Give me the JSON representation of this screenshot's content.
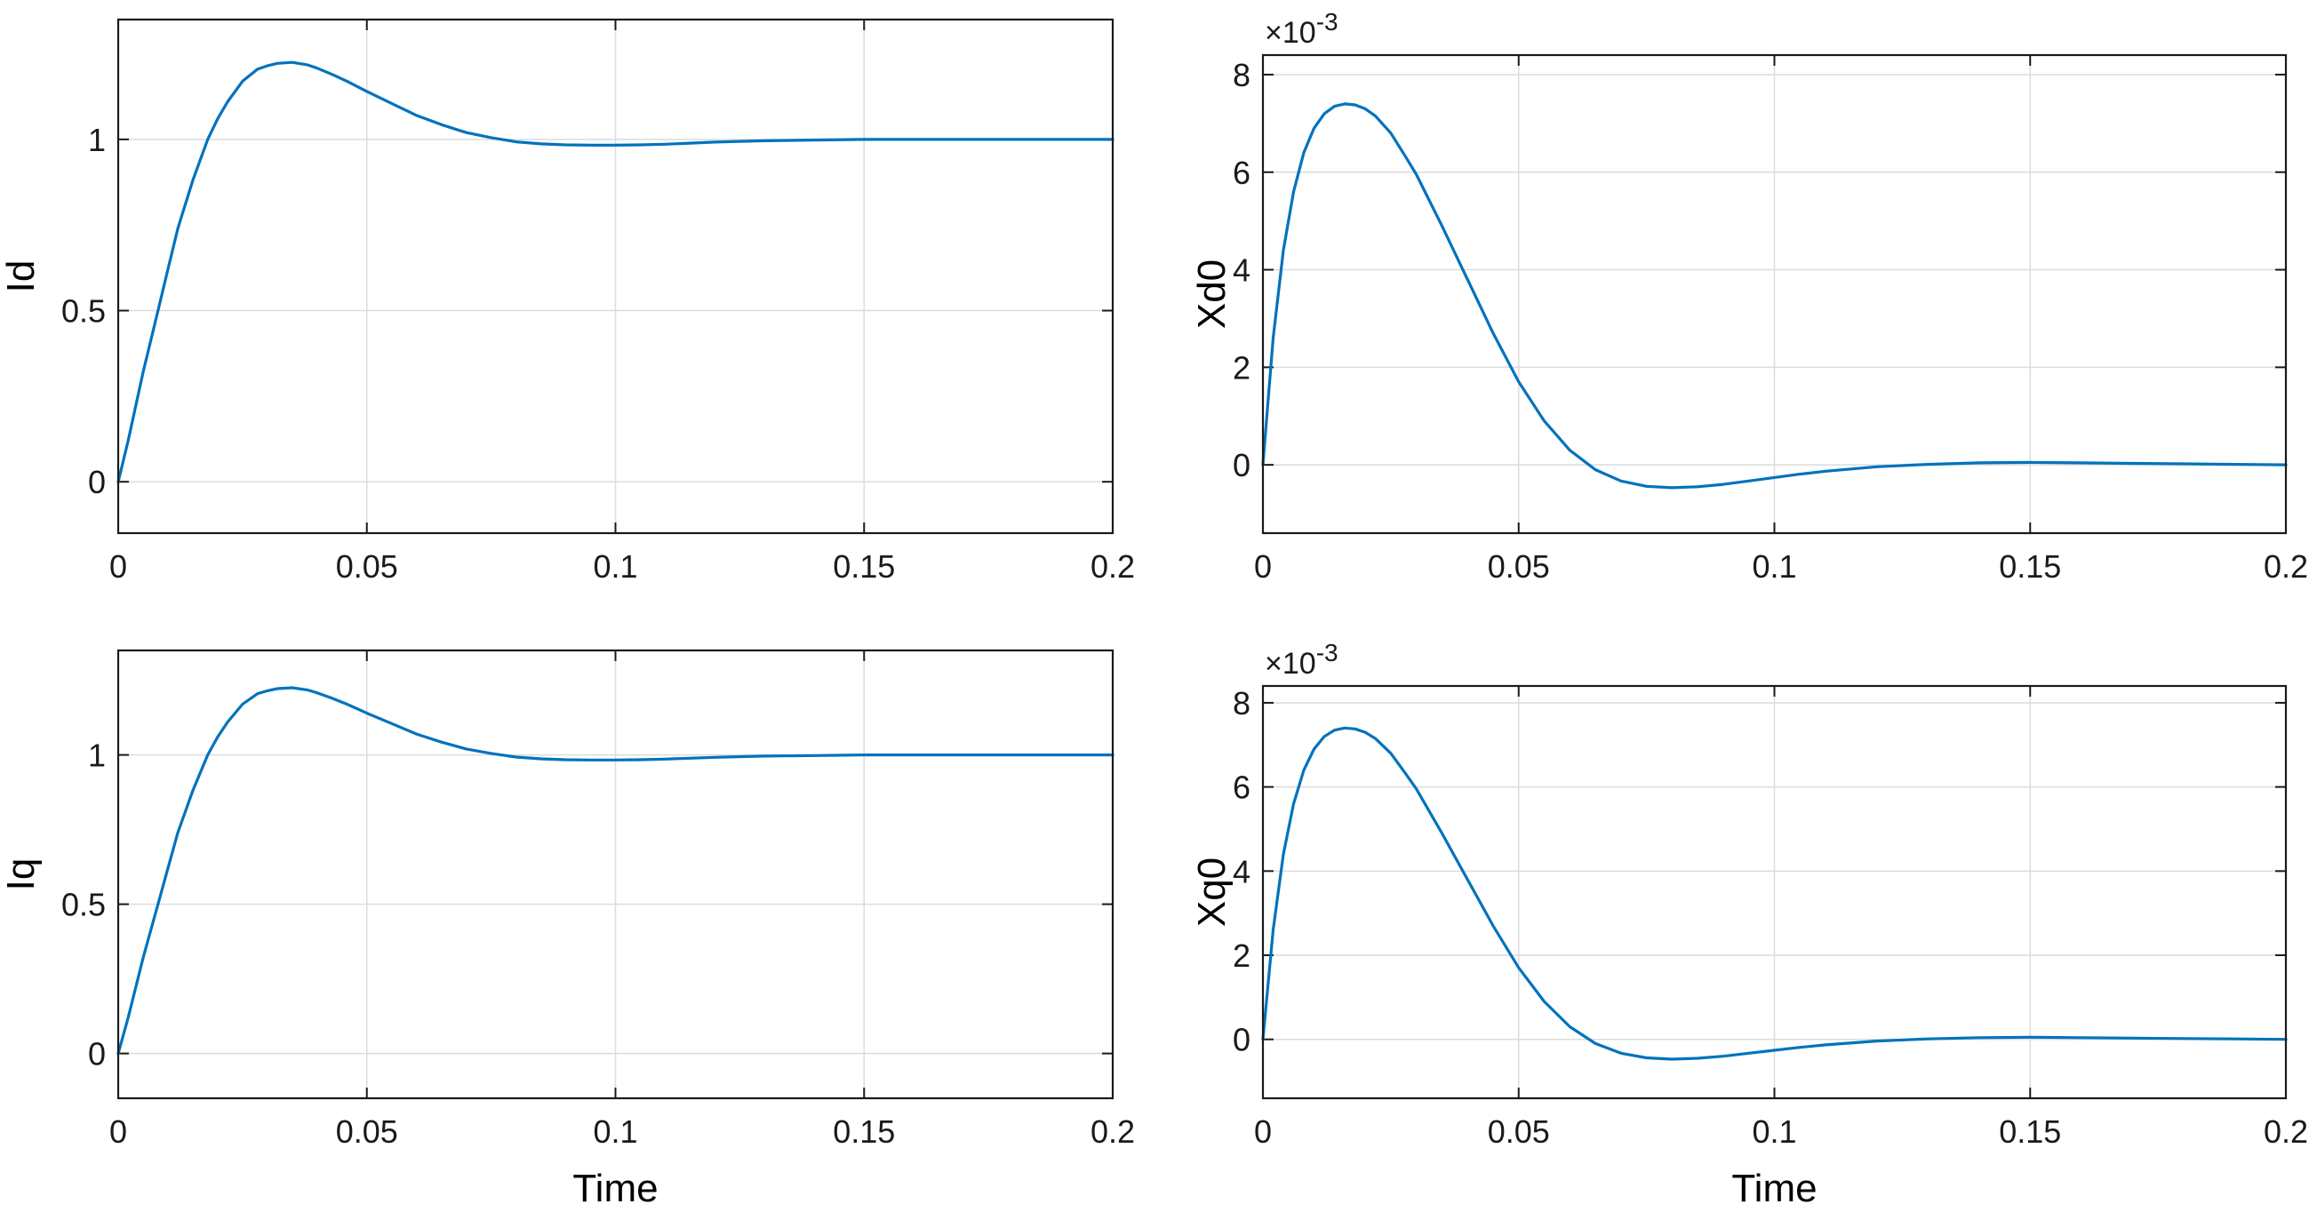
{
  "chart_data": [
    {
      "type": "line",
      "xlabel": "",
      "ylabel": "Id",
      "multiplier": "",
      "multiplier_exp": "",
      "xlim": [
        0,
        0.2
      ],
      "ylim": [
        -0.15,
        1.35
      ],
      "xticks": [
        0,
        0.05,
        0.1,
        0.15,
        0.2
      ],
      "xtick_labels": [
        "0",
        "0.05",
        "0.1",
        "0.15",
        "0.2"
      ],
      "yticks": [
        0,
        0.5,
        1
      ],
      "ytick_labels": [
        "0",
        "0.5",
        "1"
      ],
      "grid": true,
      "color": "#0072bd",
      "series": [
        {
          "x": [
            0,
            0.002,
            0.005,
            0.008,
            0.01,
            0.012,
            0.015,
            0.018,
            0.02,
            0.022,
            0.025,
            0.028,
            0.03,
            0.032,
            0.035,
            0.038,
            0.04,
            0.043,
            0.046,
            0.05,
            0.055,
            0.06,
            0.065,
            0.07,
            0.075,
            0.08,
            0.085,
            0.09,
            0.095,
            0.1,
            0.105,
            0.11,
            0.115,
            0.12,
            0.13,
            0.14,
            0.15,
            0.16,
            0.17,
            0.18,
            0.19,
            0.2
          ],
          "y": [
            0,
            0.12,
            0.32,
            0.5,
            0.62,
            0.74,
            0.88,
            1.0,
            1.06,
            1.11,
            1.17,
            1.205,
            1.215,
            1.222,
            1.225,
            1.218,
            1.208,
            1.19,
            1.17,
            1.14,
            1.105,
            1.07,
            1.043,
            1.02,
            1.005,
            0.993,
            0.987,
            0.984,
            0.983,
            0.983,
            0.984,
            0.986,
            0.989,
            0.992,
            0.996,
            0.998,
            1.0,
            1.0,
            1.0,
            1.0,
            1.0,
            1.0
          ]
        }
      ]
    },
    {
      "type": "line",
      "xlabel": "",
      "ylabel": "Xd0",
      "multiplier": "×10",
      "multiplier_exp": "-3",
      "xlim": [
        0,
        0.2
      ],
      "ylim": [
        -1.4,
        8.4
      ],
      "xticks": [
        0,
        0.05,
        0.1,
        0.15,
        0.2
      ],
      "xtick_labels": [
        "0",
        "0.05",
        "0.1",
        "0.15",
        "0.2"
      ],
      "yticks": [
        0,
        2,
        4,
        6,
        8
      ],
      "ytick_labels": [
        "0",
        "2",
        "4",
        "6",
        "8"
      ],
      "grid": true,
      "color": "#0072bd",
      "series": [
        {
          "x": [
            0,
            0.002,
            0.004,
            0.006,
            0.008,
            0.01,
            0.012,
            0.014,
            0.016,
            0.018,
            0.02,
            0.022,
            0.025,
            0.028,
            0.03,
            0.035,
            0.04,
            0.045,
            0.05,
            0.055,
            0.06,
            0.065,
            0.07,
            0.075,
            0.08,
            0.085,
            0.09,
            0.095,
            0.1,
            0.105,
            0.11,
            0.12,
            0.13,
            0.14,
            0.15,
            0.16,
            0.17,
            0.18,
            0.19,
            0.2
          ],
          "y": [
            0,
            2.6,
            4.4,
            5.6,
            6.4,
            6.9,
            7.2,
            7.35,
            7.4,
            7.38,
            7.3,
            7.15,
            6.8,
            6.3,
            5.95,
            4.9,
            3.8,
            2.7,
            1.7,
            0.9,
            0.3,
            -0.1,
            -0.33,
            -0.44,
            -0.47,
            -0.45,
            -0.4,
            -0.33,
            -0.26,
            -0.19,
            -0.13,
            -0.04,
            0.01,
            0.04,
            0.05,
            0.04,
            0.03,
            0.02,
            0.01,
            0.0
          ]
        }
      ]
    },
    {
      "type": "line",
      "xlabel": "Time",
      "ylabel": "Iq",
      "multiplier": "",
      "multiplier_exp": "",
      "xlim": [
        0,
        0.2
      ],
      "ylim": [
        -0.15,
        1.35
      ],
      "xticks": [
        0,
        0.05,
        0.1,
        0.15,
        0.2
      ],
      "xtick_labels": [
        "0",
        "0.05",
        "0.1",
        "0.15",
        "0.2"
      ],
      "yticks": [
        0,
        0.5,
        1
      ],
      "ytick_labels": [
        "0",
        "0.5",
        "1"
      ],
      "grid": true,
      "color": "#0072bd",
      "series": [
        {
          "x": [
            0,
            0.002,
            0.005,
            0.008,
            0.01,
            0.012,
            0.015,
            0.018,
            0.02,
            0.022,
            0.025,
            0.028,
            0.03,
            0.032,
            0.035,
            0.038,
            0.04,
            0.043,
            0.046,
            0.05,
            0.055,
            0.06,
            0.065,
            0.07,
            0.075,
            0.08,
            0.085,
            0.09,
            0.095,
            0.1,
            0.105,
            0.11,
            0.115,
            0.12,
            0.13,
            0.14,
            0.15,
            0.16,
            0.17,
            0.18,
            0.19,
            0.2
          ],
          "y": [
            0,
            0.12,
            0.32,
            0.5,
            0.62,
            0.74,
            0.88,
            1.0,
            1.06,
            1.11,
            1.17,
            1.205,
            1.215,
            1.222,
            1.225,
            1.218,
            1.208,
            1.19,
            1.17,
            1.14,
            1.105,
            1.07,
            1.043,
            1.02,
            1.005,
            0.993,
            0.987,
            0.984,
            0.983,
            0.983,
            0.984,
            0.986,
            0.989,
            0.992,
            0.996,
            0.998,
            1.0,
            1.0,
            1.0,
            1.0,
            1.0,
            1.0
          ]
        }
      ]
    },
    {
      "type": "line",
      "xlabel": "Time",
      "ylabel": "Xq0",
      "multiplier": "×10",
      "multiplier_exp": "-3",
      "xlim": [
        0,
        0.2
      ],
      "ylim": [
        -1.4,
        8.4
      ],
      "xticks": [
        0,
        0.05,
        0.1,
        0.15,
        0.2
      ],
      "xtick_labels": [
        "0",
        "0.05",
        "0.1",
        "0.15",
        "0.2"
      ],
      "yticks": [
        0,
        2,
        4,
        6,
        8
      ],
      "ytick_labels": [
        "0",
        "2",
        "4",
        "6",
        "8"
      ],
      "grid": true,
      "color": "#0072bd",
      "series": [
        {
          "x": [
            0,
            0.002,
            0.004,
            0.006,
            0.008,
            0.01,
            0.012,
            0.014,
            0.016,
            0.018,
            0.02,
            0.022,
            0.025,
            0.028,
            0.03,
            0.035,
            0.04,
            0.045,
            0.05,
            0.055,
            0.06,
            0.065,
            0.07,
            0.075,
            0.08,
            0.085,
            0.09,
            0.095,
            0.1,
            0.105,
            0.11,
            0.12,
            0.13,
            0.14,
            0.15,
            0.16,
            0.17,
            0.18,
            0.19,
            0.2
          ],
          "y": [
            0,
            2.6,
            4.4,
            5.6,
            6.4,
            6.9,
            7.2,
            7.35,
            7.4,
            7.38,
            7.3,
            7.15,
            6.8,
            6.3,
            5.95,
            4.9,
            3.8,
            2.7,
            1.7,
            0.9,
            0.3,
            -0.1,
            -0.33,
            -0.44,
            -0.47,
            -0.45,
            -0.4,
            -0.33,
            -0.26,
            -0.19,
            -0.13,
            -0.04,
            0.01,
            0.04,
            0.05,
            0.04,
            0.03,
            0.02,
            0.01,
            0.0
          ]
        }
      ]
    }
  ]
}
